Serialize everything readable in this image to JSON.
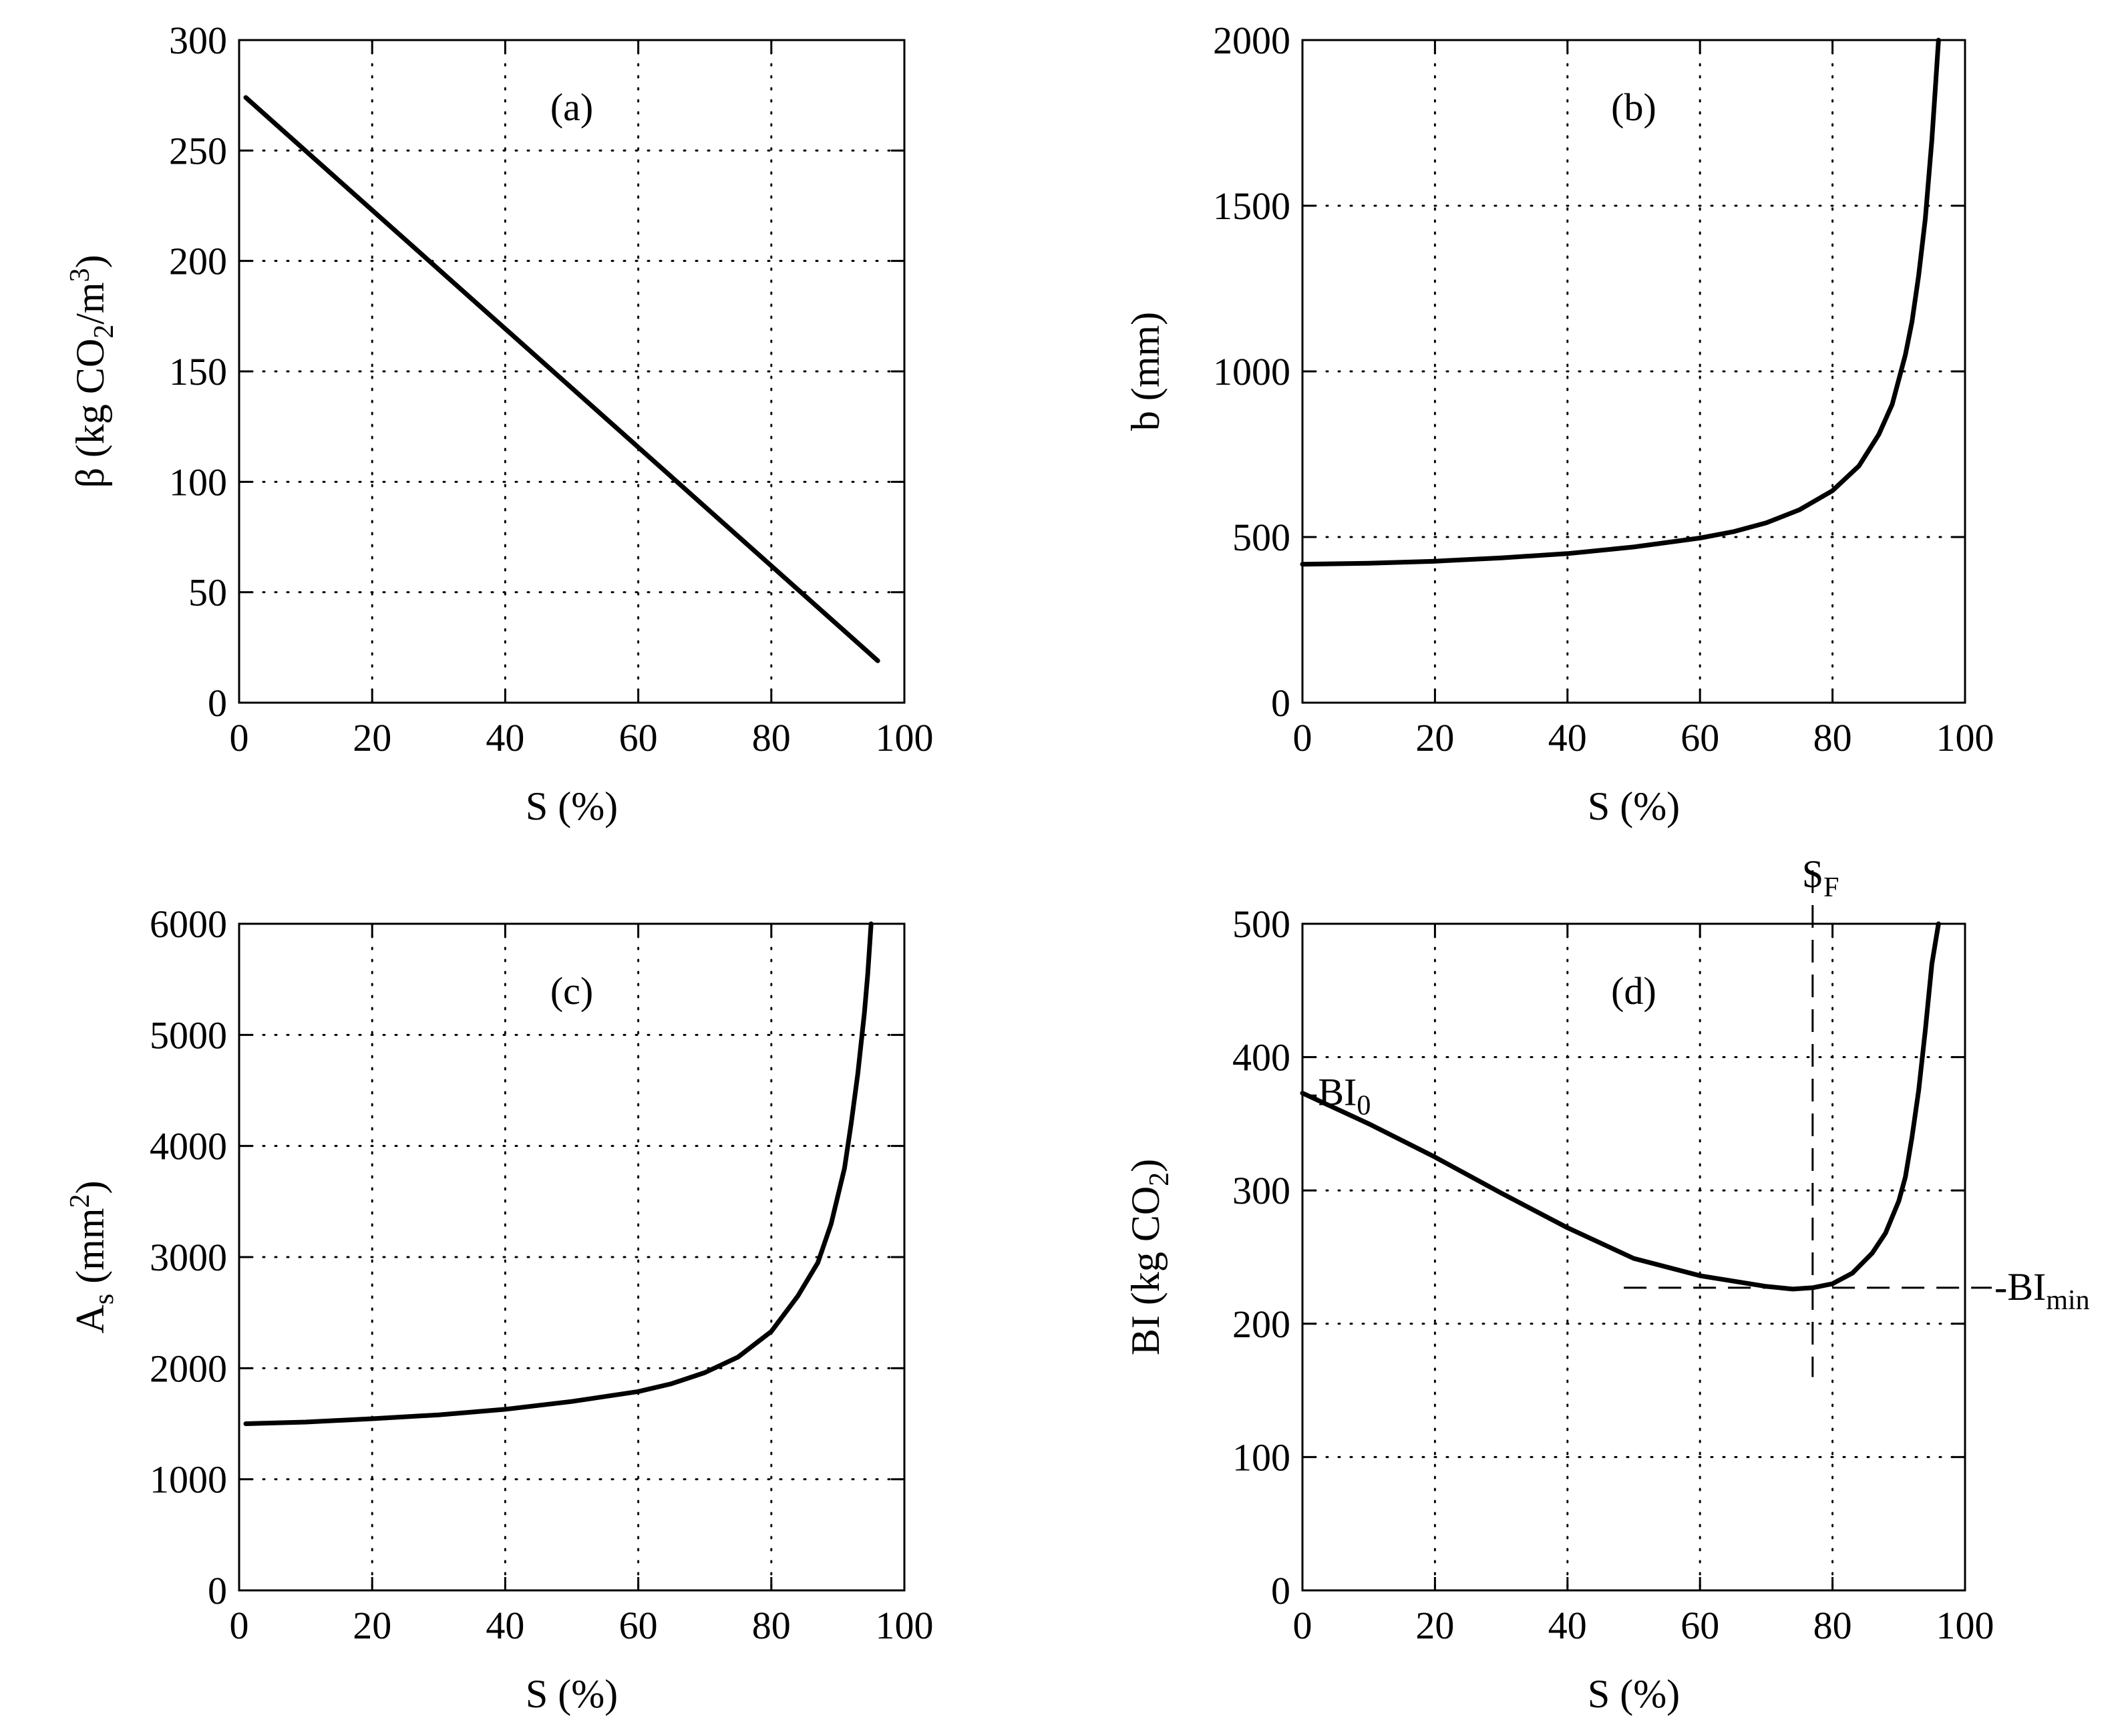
{
  "chart_data": [
    {
      "id": "a",
      "type": "line",
      "panel_label": "(a)",
      "xlabel": "S  (%)",
      "ylabel": {
        "parts": [
          "β  (kg CO",
          "2",
          "/m",
          "3",
          ")"
        ]
      },
      "xlim": [
        0,
        100
      ],
      "ylim": [
        0,
        300
      ],
      "xticks": [
        0,
        20,
        40,
        60,
        80,
        100
      ],
      "yticks": [
        0,
        50,
        100,
        150,
        200,
        250,
        300
      ],
      "grid": true,
      "series": [
        {
          "name": "beta",
          "x": [
            1,
            96
          ],
          "y": [
            274,
            19
          ]
        }
      ]
    },
    {
      "id": "b",
      "type": "line",
      "panel_label": "(b)",
      "xlabel": "S  (%)",
      "ylabel": {
        "parts": [
          "b  (mm)"
        ]
      },
      "xlim": [
        0,
        100
      ],
      "ylim": [
        0,
        2000
      ],
      "xticks": [
        0,
        20,
        40,
        60,
        80,
        100
      ],
      "yticks": [
        0,
        500,
        1000,
        1500,
        2000
      ],
      "grid": true,
      "series": [
        {
          "name": "b",
          "x": [
            0,
            10,
            20,
            30,
            40,
            50,
            60,
            65,
            70,
            75,
            80,
            84,
            87,
            89,
            91,
            92,
            93,
            94,
            95,
            95.5,
            96
          ],
          "y": [
            418,
            421,
            427,
            437,
            450,
            470,
            497,
            516,
            543,
            582,
            640,
            715,
            810,
            900,
            1050,
            1150,
            1290,
            1460,
            1700,
            1850,
            2000
          ]
        }
      ]
    },
    {
      "id": "c",
      "type": "line",
      "panel_label": "(c)",
      "xlabel": "S  (%)",
      "ylabel": {
        "parts": [
          "A",
          "s",
          "  (mm",
          "2",
          ")"
        ]
      },
      "xlim": [
        0,
        100
      ],
      "ylim": [
        0,
        6000
      ],
      "xticks": [
        0,
        20,
        40,
        60,
        80,
        100
      ],
      "yticks": [
        0,
        1000,
        2000,
        3000,
        4000,
        5000,
        6000
      ],
      "grid": true,
      "series": [
        {
          "name": "As",
          "x": [
            1,
            10,
            20,
            30,
            40,
            50,
            60,
            65,
            70,
            75,
            80,
            84,
            87,
            89,
            91,
            92,
            93,
            94,
            94.5,
            95
          ],
          "y": [
            1500,
            1515,
            1545,
            1580,
            1630,
            1700,
            1790,
            1860,
            1960,
            2100,
            2330,
            2650,
            2950,
            3300,
            3800,
            4200,
            4650,
            5200,
            5550,
            6000
          ]
        }
      ]
    },
    {
      "id": "d",
      "type": "line",
      "panel_label": "(d)",
      "xlabel": "S  (%)",
      "ylabel": {
        "parts": [
          "BI  (kg CO",
          "2",
          ")"
        ]
      },
      "xlim": [
        0,
        100
      ],
      "ylim": [
        0,
        500
      ],
      "xticks": [
        0,
        20,
        40,
        60,
        80,
        100
      ],
      "yticks": [
        0,
        100,
        200,
        300,
        400,
        500
      ],
      "grid": true,
      "series": [
        {
          "name": "BI",
          "x": [
            0,
            10,
            20,
            30,
            40,
            50,
            60,
            65,
            70,
            74,
            77,
            80,
            83,
            86,
            88,
            90,
            91,
            92,
            93,
            94,
            95,
            96
          ],
          "y": [
            373,
            350,
            325,
            298,
            272,
            249,
            236,
            232,
            228,
            226,
            227,
            230,
            238,
            253,
            268,
            292,
            310,
            340,
            375,
            420,
            470,
            500
          ]
        }
      ],
      "annotations": {
        "BI0": {
          "label": "-BI",
          "sub": "0",
          "value": 373
        },
        "BImin": {
          "label": "-BI",
          "sub": "min",
          "value": 227
        },
        "SF": {
          "label": "S",
          "sub": "F",
          "value": 77
        }
      }
    }
  ]
}
